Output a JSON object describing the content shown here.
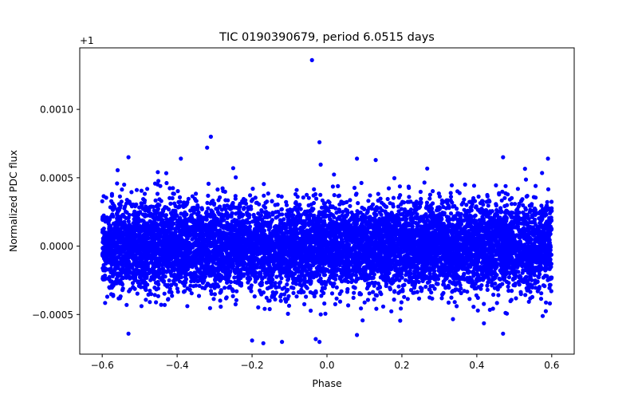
{
  "chart_data": {
    "type": "scatter",
    "title": "TIC 0190390679, period 6.0515 days",
    "xlabel": "Phase",
    "ylabel": "Normalized PDC flux",
    "offset_label": "+1",
    "xlim": [
      -0.66,
      0.66
    ],
    "ylim": [
      -0.00079,
      0.00145
    ],
    "x_ticks": [
      -0.6,
      -0.4,
      -0.2,
      0.0,
      0.2,
      0.4,
      0.6
    ],
    "x_tick_labels": [
      "−0.6",
      "−0.4",
      "−0.2",
      "0.0",
      "0.2",
      "0.4",
      "0.6"
    ],
    "y_ticks": [
      -0.0005,
      0.0,
      0.0005,
      0.001
    ],
    "y_tick_labels": [
      "−0.0005",
      "0.0000",
      "0.0005",
      "0.0010"
    ],
    "grid": false,
    "marker_color": "#0000ff",
    "series": [
      {
        "x_range": [
          -0.6,
          0.6
        ],
        "y_mean": 0.0,
        "y_std": 0.00016,
        "num_points": 9000,
        "notable_points": [
          {
            "x": -0.04,
            "y": 0.00136
          },
          {
            "x": -0.02,
            "y": 0.00076
          },
          {
            "x": -0.31,
            "y": 0.0008
          },
          {
            "x": -0.32,
            "y": 0.00072
          },
          {
            "x": -0.53,
            "y": 0.00065
          },
          {
            "x": -0.39,
            "y": 0.00064
          },
          {
            "x": 0.08,
            "y": 0.00064
          },
          {
            "x": 0.13,
            "y": 0.00063
          },
          {
            "x": 0.47,
            "y": 0.00065
          },
          {
            "x": 0.59,
            "y": 0.00064
          },
          {
            "x": -0.02,
            "y": -0.0007
          },
          {
            "x": -0.17,
            "y": -0.00071
          },
          {
            "x": -0.12,
            "y": -0.0007
          },
          {
            "x": -0.2,
            "y": -0.00069
          },
          {
            "x": -0.53,
            "y": -0.00064
          },
          {
            "x": 0.08,
            "y": -0.00065
          },
          {
            "x": 0.47,
            "y": -0.00064
          },
          {
            "x": -0.03,
            "y": -0.00068
          }
        ]
      }
    ]
  }
}
